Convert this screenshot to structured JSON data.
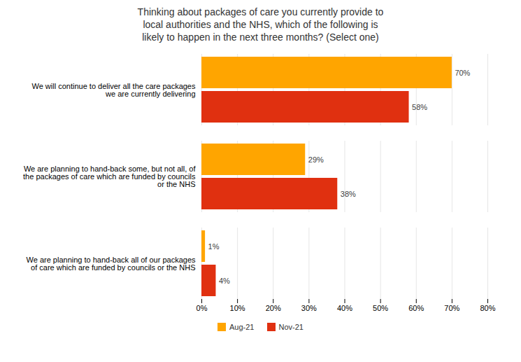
{
  "chart_data": {
    "type": "bar",
    "orientation": "horizontal",
    "title": "Thinking about packages of care you currently provide to\nlocal authorities and the NHS, which of the following is\nlikely to happen in the next three months? (Select one)",
    "categories": [
      "We will continue to deliver all the care packages\nwe are currently delivering",
      "We are planning to hand-back some, but not all, of\nthe packages of care which are funded by councils\nor the NHS",
      "We are planning to hand-back all of our packages\nof care which are funded by councils or the NHS"
    ],
    "series": [
      {
        "name": "Aug-21",
        "color": "#FFA500",
        "values": [
          70,
          29,
          1
        ],
        "value_labels": [
          "70%",
          "29%",
          "1%"
        ]
      },
      {
        "name": "Nov-21",
        "color": "#E03010",
        "values": [
          58,
          38,
          4
        ],
        "value_labels": [
          "58%",
          "38%",
          "4%"
        ]
      }
    ],
    "xlim": [
      0,
      80
    ],
    "xticks": [
      {
        "value": 0,
        "label": "0%"
      },
      {
        "value": 10,
        "label": "10%"
      },
      {
        "value": 20,
        "label": "20%"
      },
      {
        "value": 30,
        "label": "30%"
      },
      {
        "value": 40,
        "label": "40%"
      },
      {
        "value": 50,
        "label": "50%"
      },
      {
        "value": 60,
        "label": "60%"
      },
      {
        "value": 70,
        "label": "70%"
      },
      {
        "value": 80,
        "label": "80%"
      }
    ],
    "grid": true,
    "data_labels": true,
    "legend": "bottom"
  }
}
